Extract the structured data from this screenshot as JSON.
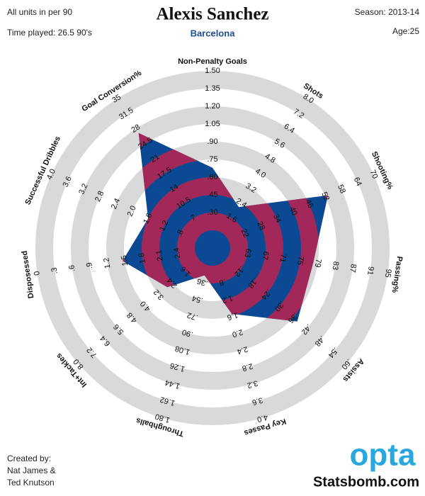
{
  "chart_data": {
    "type": "radar",
    "title": "Alexis Sanchez",
    "subtitle": "Barcelona",
    "colors": [
      "#0b4a93",
      "#a3285a"
    ],
    "ring_color": "#d9d9d9",
    "axes": [
      {
        "name": "Non-Penalty Goals",
        "lim": [
          0,
          1.5
        ],
        "ticks": [
          {
            "value": 0.3,
            "label": ".30"
          },
          {
            "value": 0.45,
            "label": ".45"
          },
          {
            "value": 0.6,
            "label": ".60"
          },
          {
            "value": 0.75,
            "label": ".75"
          },
          {
            "value": 0.9,
            "label": ".90"
          },
          1.05,
          {
            "value": 1.2,
            "label": "1.20"
          },
          1.35,
          {
            "value": 1.5,
            "label": "1.50"
          }
        ]
      },
      {
        "name": "Shots",
        "lim": [
          0,
          8
        ],
        "ticks": [
          1.6,
          2.4,
          3.2,
          {
            "value": 4,
            "label": "4.0"
          },
          4.8,
          5.6,
          6.4,
          7.2,
          {
            "value": 8,
            "label": "8.0"
          }
        ]
      },
      {
        "name": "Shooting%",
        "lim": [
          10,
          70
        ],
        "ticks": [
          22,
          28,
          34,
          40,
          46,
          52,
          58,
          64,
          70
        ]
      },
      {
        "name": "Passing%",
        "lim": [
          55,
          95
        ],
        "ticks": [
          63,
          67,
          71,
          75,
          79,
          83,
          87,
          91,
          95
        ]
      },
      {
        "name": "Assists",
        "lim": [
          0,
          0.6
        ],
        "ticks": [
          {
            "value": 0.12,
            "label": ".12"
          },
          {
            "value": 0.18,
            "label": ".18"
          },
          {
            "value": 0.24,
            "label": ".24"
          },
          {
            "value": 0.3,
            "label": ".30"
          },
          {
            "value": 0.36,
            "label": ".36"
          },
          {
            "value": 0.42,
            "label": ".42"
          },
          {
            "value": 0.48,
            "label": ".48"
          },
          {
            "value": 0.54,
            "label": ".54"
          },
          {
            "value": 0.6,
            "label": ".60"
          }
        ]
      },
      {
        "name": "Key Passes",
        "lim": [
          0,
          4
        ],
        "ticks": [
          {
            "value": 0.8,
            "label": ".8"
          },
          1.2,
          1.6,
          {
            "value": 2,
            "label": "2.0"
          },
          2.4,
          2.8,
          3.2,
          3.6,
          {
            "value": 4,
            "label": "4.0"
          }
        ]
      },
      {
        "name": "Throughballs",
        "lim": [
          0,
          1.8
        ],
        "ticks": [
          {
            "value": 0.36,
            "label": ".36"
          },
          {
            "value": 0.54,
            "label": ".54"
          },
          {
            "value": 0.72,
            "label": ".72"
          },
          {
            "value": 0.9,
            "label": ".90"
          },
          1.08,
          1.26,
          1.44,
          1.62,
          {
            "value": 1.8,
            "label": "1.80"
          }
        ]
      },
      {
        "name": "Int+Tackles",
        "lim": [
          0,
          8
        ],
        "ticks": [
          1.6,
          2.4,
          3.2,
          {
            "value": 4,
            "label": "4.0"
          },
          4.8,
          5.6,
          6.4,
          7.2,
          {
            "value": 8,
            "label": "8.0"
          }
        ]
      },
      {
        "name": "Disposessed",
        "lim": [
          3,
          0
        ],
        "ticks": [
          2.4,
          2.1,
          1.8,
          1.5,
          1.2,
          {
            "value": 0.9,
            "label": ".9"
          },
          {
            "value": 0.6,
            "label": ".6"
          },
          {
            "value": 0.3,
            "label": ".3"
          },
          0
        ]
      },
      {
        "name": "Successful Dribbles",
        "lim": [
          0,
          4
        ],
        "ticks": [
          {
            "value": 0.8,
            "label": ".8"
          },
          1.2,
          1.6,
          {
            "value": 2,
            "label": "2.0"
          },
          2.4,
          2.8,
          3.2,
          3.6,
          {
            "value": 4,
            "label": "4.0"
          }
        ]
      },
      {
        "name": "Goal Conversion%",
        "lim": [
          0,
          35
        ],
        "ticks": [
          7,
          10.5,
          14,
          17.5,
          21,
          24.5,
          28,
          31.5,
          35
        ]
      }
    ],
    "values": [
      0.68,
      2.2,
      53,
      78,
      0.38,
      1.55,
      0.29,
      2.7,
      1.46,
      1.6,
      27
    ]
  },
  "notes": {
    "units": "All units in per 90",
    "time": "Time played: 26.5 90's",
    "season": "Season: 2013-14",
    "age": "Age:25",
    "credit": [
      "Created by:",
      "Nat James &",
      "Ted Knutson"
    ],
    "logo": "opta",
    "site": "Statsbomb.com"
  }
}
